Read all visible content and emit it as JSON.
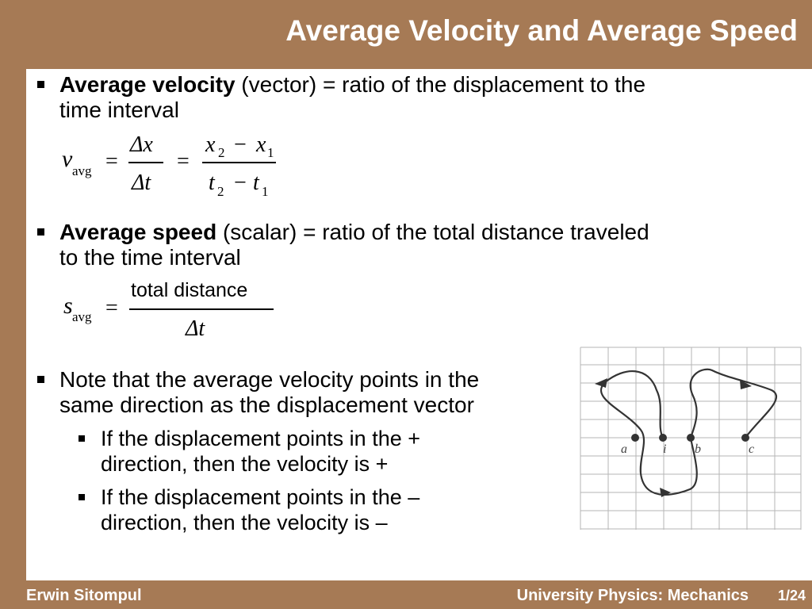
{
  "title": "Average Velocity and Average Speed",
  "bullets": {
    "b1_bold": "Average velocity",
    "b1_rest": " (vector) = ratio of the displacement to the",
    "b1_line2": "time interval",
    "b2_bold": "Average speed",
    "b2_rest": " (scalar) = ratio of the total distance traveled",
    "b2_line2": "to the time interval",
    "b3_line1": "Note that the average velocity points in the",
    "b3_line2": "same direction as the displacement vector",
    "s1_line1": "If  the displacement points in the +",
    "s1_line2": "direction, then the velocity is +",
    "s2_line1": "If  the displacement points in the  –",
    "s2_line2": "direction, then the velocity is –"
  },
  "eq1": {
    "v": "v",
    "avg": "avg",
    "eq": "=",
    "dx": "Δx",
    "dt": "Δt",
    "x2": "x",
    "sub2": "2",
    "minus": "−",
    "x1": "x",
    "sub1": "1",
    "t": "t"
  },
  "eq2": {
    "s": "s",
    "avg": "avg",
    "eq": "=",
    "num": "total distance",
    "den": "Δt"
  },
  "figure": {
    "labels": [
      "a",
      "i",
      "b",
      "c"
    ]
  },
  "footer": {
    "author": "Erwin Sitompul",
    "course": "University Physics: Mechanics",
    "page": "1/24"
  }
}
